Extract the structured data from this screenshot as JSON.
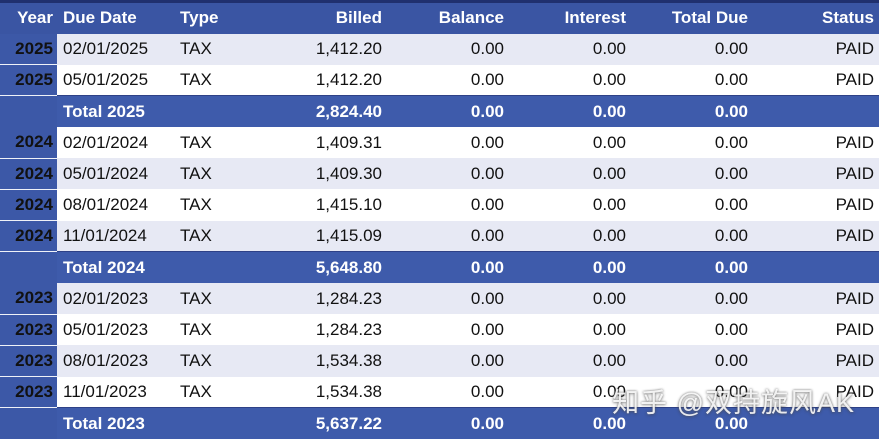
{
  "colors": {
    "header_bg": "#3A55A3",
    "year_cell_bg": "#3C58A7",
    "total_row_bg": "#3E5BAB",
    "row_odd_bg": "#E7E9F4",
    "row_even_bg": "#FFFFFF",
    "header_text": "#FFFFFF",
    "body_text": "#111111",
    "top_border": "#20306E"
  },
  "table": {
    "columns": [
      {
        "key": "year",
        "label": "Year",
        "align": "right"
      },
      {
        "key": "due_date",
        "label": "Due Date",
        "align": "left"
      },
      {
        "key": "type",
        "label": "Type",
        "align": "left"
      },
      {
        "key": "billed",
        "label": "Billed",
        "align": "right"
      },
      {
        "key": "balance",
        "label": "Balance",
        "align": "right"
      },
      {
        "key": "interest",
        "label": "Interest",
        "align": "right"
      },
      {
        "key": "total_due",
        "label": "Total Due",
        "align": "right"
      },
      {
        "key": "status",
        "label": "Status",
        "align": "right"
      }
    ],
    "rows": [
      {
        "kind": "data",
        "variant": "odd",
        "year": "2025",
        "due_date": "02/01/2025",
        "type": "TAX",
        "billed": "1,412.20",
        "balance": "0.00",
        "interest": "0.00",
        "total_due": "0.00",
        "status": "PAID"
      },
      {
        "kind": "data",
        "variant": "even",
        "year": "2025",
        "due_date": "05/01/2025",
        "type": "TAX",
        "billed": "1,412.20",
        "balance": "0.00",
        "interest": "0.00",
        "total_due": "0.00",
        "status": "PAID"
      },
      {
        "kind": "total",
        "label": "Total 2025",
        "billed": "2,824.40",
        "balance": "0.00",
        "interest": "0.00",
        "total_due": "0.00"
      },
      {
        "kind": "data",
        "variant": "even",
        "year": "2024",
        "due_date": "02/01/2024",
        "type": "TAX",
        "billed": "1,409.31",
        "balance": "0.00",
        "interest": "0.00",
        "total_due": "0.00",
        "status": "PAID"
      },
      {
        "kind": "data",
        "variant": "odd",
        "year": "2024",
        "due_date": "05/01/2024",
        "type": "TAX",
        "billed": "1,409.30",
        "balance": "0.00",
        "interest": "0.00",
        "total_due": "0.00",
        "status": "PAID"
      },
      {
        "kind": "data",
        "variant": "even",
        "year": "2024",
        "due_date": "08/01/2024",
        "type": "TAX",
        "billed": "1,415.10",
        "balance": "0.00",
        "interest": "0.00",
        "total_due": "0.00",
        "status": "PAID"
      },
      {
        "kind": "data",
        "variant": "odd",
        "year": "2024",
        "due_date": "11/01/2024",
        "type": "TAX",
        "billed": "1,415.09",
        "balance": "0.00",
        "interest": "0.00",
        "total_due": "0.00",
        "status": "PAID"
      },
      {
        "kind": "total",
        "label": "Total 2024",
        "billed": "5,648.80",
        "balance": "0.00",
        "interest": "0.00",
        "total_due": "0.00"
      },
      {
        "kind": "data",
        "variant": "odd",
        "year": "2023",
        "due_date": "02/01/2023",
        "type": "TAX",
        "billed": "1,284.23",
        "balance": "0.00",
        "interest": "0.00",
        "total_due": "0.00",
        "status": "PAID"
      },
      {
        "kind": "data",
        "variant": "even",
        "year": "2023",
        "due_date": "05/01/2023",
        "type": "TAX",
        "billed": "1,284.23",
        "balance": "0.00",
        "interest": "0.00",
        "total_due": "0.00",
        "status": "PAID"
      },
      {
        "kind": "data",
        "variant": "odd",
        "year": "2023",
        "due_date": "08/01/2023",
        "type": "TAX",
        "billed": "1,534.38",
        "balance": "0.00",
        "interest": "0.00",
        "total_due": "0.00",
        "status": "PAID"
      },
      {
        "kind": "data",
        "variant": "even",
        "year": "2023",
        "due_date": "11/01/2023",
        "type": "TAX",
        "billed": "1,534.38",
        "balance": "0.00",
        "interest": "0.00",
        "total_due": "0.00",
        "status": "PAID"
      },
      {
        "kind": "total",
        "label": "Total 2023",
        "billed": "5,637.22",
        "balance": "0.00",
        "interest": "0.00",
        "total_due": "0.00"
      }
    ]
  },
  "watermark": {
    "text": "知乎 @双持旋风AK"
  }
}
